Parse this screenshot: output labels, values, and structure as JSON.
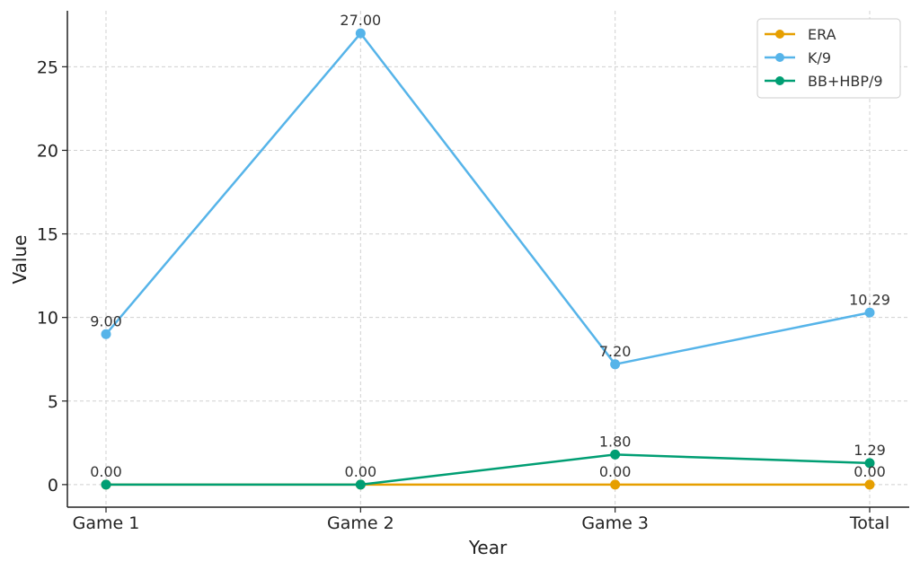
{
  "chart_data": {
    "type": "line",
    "categories": [
      "Game 1",
      "Game 2",
      "Game 3",
      "Total"
    ],
    "xlabel": "Year",
    "ylabel": "Value",
    "ylim": [
      -1.35,
      28.35
    ],
    "yticks": [
      0,
      5,
      10,
      15,
      20,
      25
    ],
    "grid": true,
    "legend_position": "top-right",
    "series": [
      {
        "name": "ERA",
        "color": "#E69F00",
        "values": [
          0.0,
          0.0,
          0.0,
          0.0
        ],
        "labels": [
          "0.00",
          "0.00",
          "0.00",
          "0.00"
        ]
      },
      {
        "name": "K/9",
        "color": "#56B4E9",
        "values": [
          9.0,
          27.0,
          7.2,
          10.29
        ],
        "labels": [
          "9.00",
          "27.00",
          "7.20",
          "10.29"
        ]
      },
      {
        "name": "BB+HBP/9",
        "color": "#009E73",
        "values": [
          0.0,
          0.0,
          1.8,
          1.29
        ],
        "labels": [
          "",
          "",
          "1.80",
          "1.29"
        ]
      }
    ]
  }
}
